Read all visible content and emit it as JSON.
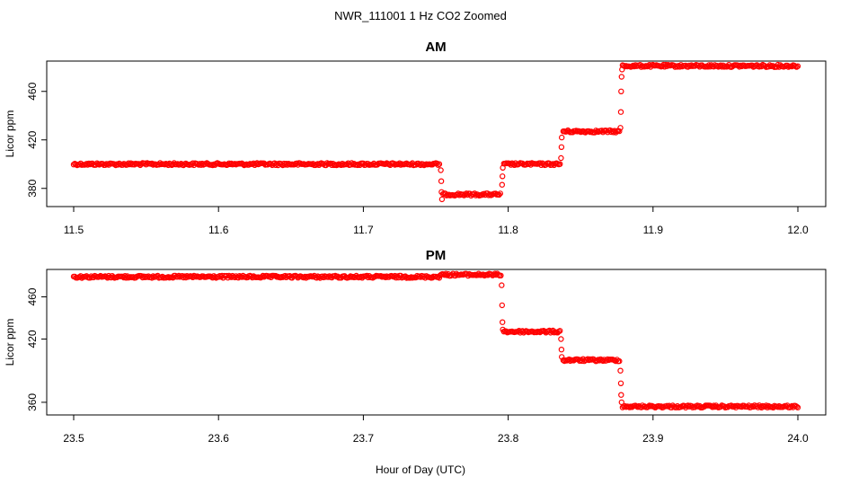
{
  "figure": {
    "title": "NWR_111001  1 Hz CO2 Zoomed",
    "xlabel": "Hour of Day (UTC)",
    "marker_color": "#ff0000"
  },
  "chart_data": [
    {
      "type": "scatter",
      "title": "AM",
      "xlabel": "",
      "ylabel": "Licor ppm",
      "xlim": [
        11.5,
        12.0
      ],
      "ylim": [
        365,
        485
      ],
      "xticks": [
        "11.5",
        "11.6",
        "11.7",
        "11.8",
        "11.9",
        "12.0"
      ],
      "yticks": [
        "380",
        "420",
        "460"
      ],
      "marker": "open-circle",
      "color": "#ff0000",
      "grid": false,
      "segments": [
        {
          "x_start": 11.5,
          "x_end": 11.753,
          "y": 400
        },
        {
          "x_start": 11.755,
          "x_end": 11.795,
          "y": 375
        },
        {
          "x_start": 11.797,
          "x_end": 11.836,
          "y": 400
        },
        {
          "x_start": 11.838,
          "x_end": 11.877,
          "y": 427
        },
        {
          "x_start": 11.879,
          "x_end": 12.0,
          "y": 481
        }
      ],
      "transitions": [
        {
          "x": 11.7535,
          "y": 395
        },
        {
          "x": 11.7538,
          "y": 386
        },
        {
          "x": 11.754,
          "y": 377
        },
        {
          "x": 11.7543,
          "y": 371
        },
        {
          "x": 11.7958,
          "y": 383
        },
        {
          "x": 11.796,
          "y": 390
        },
        {
          "x": 11.7963,
          "y": 397
        },
        {
          "x": 11.8365,
          "y": 405
        },
        {
          "x": 11.8368,
          "y": 414
        },
        {
          "x": 11.837,
          "y": 422
        },
        {
          "x": 11.8775,
          "y": 430
        },
        {
          "x": 11.8778,
          "y": 443
        },
        {
          "x": 11.878,
          "y": 460
        },
        {
          "x": 11.8783,
          "y": 472
        },
        {
          "x": 11.8786,
          "y": 478
        }
      ]
    },
    {
      "type": "scatter",
      "title": "PM",
      "xlabel": "Hour of Day (UTC)",
      "ylabel": "Licor ppm",
      "xlim": [
        23.5,
        24.0
      ],
      "ylim": [
        348,
        486
      ],
      "xticks": [
        "23.5",
        "23.6",
        "23.7",
        "23.8",
        "23.9",
        "24.0"
      ],
      "yticks": [
        "360",
        "420",
        "460"
      ],
      "marker": "open-circle",
      "color": "#ff0000",
      "grid": false,
      "segments": [
        {
          "x_start": 23.5,
          "x_end": 23.753,
          "y": 479
        },
        {
          "x_start": 23.753,
          "x_end": 23.795,
          "y": 481
        },
        {
          "x_start": 23.797,
          "x_end": 23.836,
          "y": 427
        },
        {
          "x_start": 23.838,
          "x_end": 23.877,
          "y": 400
        },
        {
          "x_start": 23.879,
          "x_end": 24.0,
          "y": 356
        }
      ],
      "transitions": [
        {
          "x": 23.7955,
          "y": 471
        },
        {
          "x": 23.7958,
          "y": 452
        },
        {
          "x": 23.796,
          "y": 436
        },
        {
          "x": 23.7963,
          "y": 429
        },
        {
          "x": 23.8365,
          "y": 420
        },
        {
          "x": 23.8368,
          "y": 410
        },
        {
          "x": 23.837,
          "y": 403
        },
        {
          "x": 23.8775,
          "y": 390
        },
        {
          "x": 23.8778,
          "y": 378
        },
        {
          "x": 23.878,
          "y": 367
        },
        {
          "x": 23.8783,
          "y": 360
        }
      ]
    }
  ]
}
